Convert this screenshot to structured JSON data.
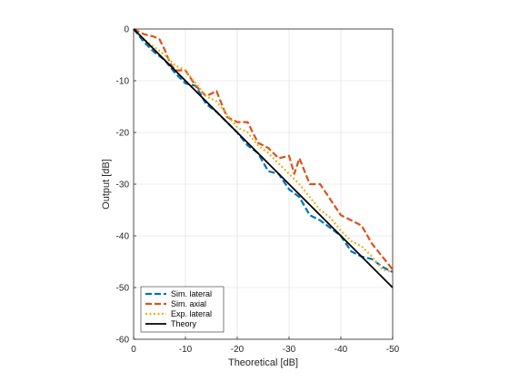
{
  "chart_data": {
    "type": "line",
    "title": "",
    "xlabel": "Theoretical [dB]",
    "ylabel": "Output [dB]",
    "xlim": [
      0,
      -50
    ],
    "ylim": [
      -60,
      0
    ],
    "x_reversed": true,
    "grid": true,
    "legend_position": "bottom-left",
    "x_ticks": [
      "0",
      "-10",
      "-20",
      "-30",
      "-40",
      "-50"
    ],
    "y_ticks": [
      "0",
      "-10",
      "-20",
      "-30",
      "-40",
      "-50",
      "-60"
    ],
    "series": [
      {
        "name": "Sim. lateral",
        "color": "#0072BD",
        "style": "dashed",
        "x": [
          0,
          -2,
          -4,
          -6,
          -8,
          -10,
          -12,
          -14,
          -16,
          -18,
          -20,
          -22,
          -24,
          -26,
          -28,
          -30,
          -32,
          -34,
          -36,
          -38,
          -40,
          -42,
          -44,
          -46,
          -48,
          -50
        ],
        "y": [
          0,
          -2.5,
          -4.5,
          -6,
          -8.5,
          -10.5,
          -11,
          -14.5,
          -16,
          -18,
          -20,
          -22.5,
          -24,
          -27.5,
          -28,
          -31,
          -32.5,
          -36,
          -37,
          -38.5,
          -40,
          -43,
          -44,
          -44.5,
          -46,
          -47
        ]
      },
      {
        "name": "Sim. axial",
        "color": "#D95319",
        "style": "dashed",
        "x": [
          0,
          -2,
          -4,
          -5,
          -6,
          -7,
          -8,
          -10,
          -12,
          -14,
          -16,
          -18,
          -20,
          -22,
          -24,
          -26,
          -28,
          -30,
          -31,
          -32,
          -34,
          -36,
          -38,
          -40,
          -42,
          -44,
          -46,
          -48,
          -50
        ],
        "y": [
          0,
          -1,
          -1.5,
          -2,
          -4,
          -6.5,
          -8,
          -8,
          -11,
          -13,
          -12,
          -17,
          -18,
          -18,
          -22,
          -23,
          -25,
          -24.5,
          -28,
          -25,
          -30,
          -30,
          -33,
          -36,
          -37,
          -38,
          -41.5,
          -44,
          -46.5
        ]
      },
      {
        "name": "Exp. lateral",
        "color": "#EDB120",
        "style": "dotted",
        "x": [
          0,
          -2,
          -4,
          -6,
          -8,
          -10,
          -12,
          -14,
          -16,
          -18,
          -20,
          -22,
          -24,
          -26,
          -28,
          -30,
          -32,
          -34,
          -36,
          -38,
          -40,
          -42,
          -44,
          -46,
          -48,
          -50
        ],
        "y": [
          0,
          -2,
          -3.5,
          -5,
          -7,
          -8,
          -10.5,
          -13,
          -14,
          -16.5,
          -19,
          -20,
          -22.5,
          -24,
          -26,
          -28,
          -30,
          -32.5,
          -35,
          -36.5,
          -39,
          -41,
          -42,
          -44,
          -46.5,
          -47
        ]
      },
      {
        "name": "Theory",
        "color": "#000000",
        "style": "solid",
        "x": [
          0,
          -50
        ],
        "y": [
          0,
          -50
        ]
      }
    ]
  }
}
